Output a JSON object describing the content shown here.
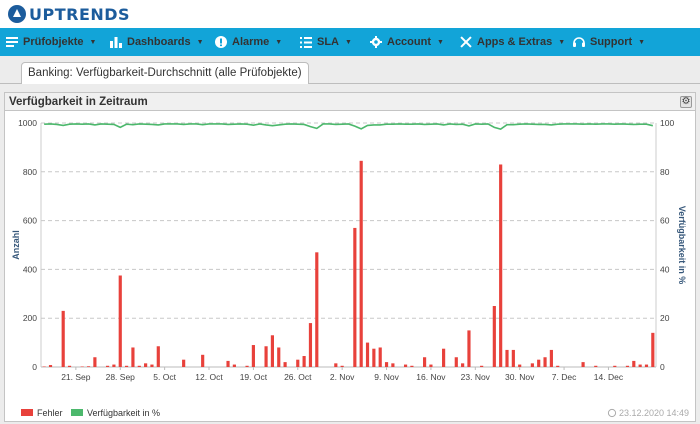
{
  "brand": {
    "name": "UPTRENDS"
  },
  "nav": [
    {
      "label": "Prüfobjekte",
      "icon": "list-icon"
    },
    {
      "label": "Dashboards",
      "icon": "bar-chart-icon"
    },
    {
      "label": "Alarme",
      "icon": "alert-icon"
    },
    {
      "label": "SLA",
      "icon": "checklist-icon"
    },
    {
      "label": "Account",
      "icon": "gear-icon"
    },
    {
      "label": "Apps & Extras",
      "icon": "tools-icon"
    },
    {
      "label": "Support",
      "icon": "headset-icon"
    }
  ],
  "tab": {
    "label": "Banking: Verfügbarkeit-Durchschnitt (alle Prüfobjekte)"
  },
  "panel": {
    "title": "Verfügbarkeit in Zeitraum",
    "timestamp": "23.12.2020 14:49"
  },
  "colors": {
    "bars": "#e8413b",
    "line": "#4cb86c",
    "nav": "#12a4d8"
  },
  "chart_data": {
    "type": "bar",
    "ylabel": "Anzahl",
    "y2label": "Verfügbarkeit in %",
    "ylim": [
      0,
      1000
    ],
    "y2lim": [
      0,
      100
    ],
    "yticks": [
      0,
      200,
      400,
      600,
      800,
      1000
    ],
    "y2ticks": [
      0,
      20,
      40,
      60,
      80,
      100
    ],
    "x_start": "2020-09-16",
    "xticks": [
      "21. Sep",
      "28. Sep",
      "5. Oct",
      "12. Oct",
      "19. Oct",
      "26. Oct",
      "2. Nov",
      "9. Nov",
      "16. Nov",
      "23. Nov",
      "30. Nov",
      "7. Dec",
      "14. Dec"
    ],
    "grid": true,
    "legend_position": "bottom-left",
    "series": [
      {
        "name": "Fehler",
        "kind": "bar",
        "values": [
          2,
          8,
          0,
          230,
          5,
          0,
          2,
          3,
          40,
          0,
          5,
          10,
          375,
          5,
          80,
          5,
          15,
          10,
          85,
          0,
          0,
          0,
          30,
          0,
          0,
          50,
          0,
          0,
          0,
          25,
          10,
          0,
          5,
          90,
          0,
          85,
          130,
          80,
          20,
          0,
          30,
          45,
          180,
          470,
          0,
          0,
          15,
          5,
          0,
          570,
          845,
          100,
          75,
          80,
          20,
          15,
          0,
          10,
          5,
          0,
          40,
          10,
          0,
          75,
          0,
          40,
          15,
          150,
          0,
          5,
          0,
          250,
          830,
          70,
          70,
          10,
          0,
          15,
          30,
          40,
          70,
          5,
          0,
          0,
          0,
          20,
          0,
          5,
          0,
          0,
          5,
          0,
          5,
          25,
          10,
          10,
          140
        ]
      },
      {
        "name": "Verfügbarkeit in %",
        "kind": "line",
        "values": [
          99.5,
          99.6,
          99.4,
          99.0,
          99.5,
          99.6,
          99.5,
          99.6,
          99.2,
          99.6,
          99.5,
          99.4,
          98.2,
          99.5,
          99.3,
          99.6,
          99.5,
          99.4,
          99.2,
          99.6,
          99.6,
          99.6,
          99.4,
          99.6,
          99.6,
          99.3,
          99.6,
          99.6,
          99.6,
          99.4,
          99.5,
          99.6,
          99.5,
          99.1,
          99.6,
          99.2,
          98.9,
          99.2,
          99.5,
          99.6,
          99.5,
          99.4,
          98.5,
          97.8,
          99.6,
          99.6,
          99.4,
          99.5,
          99.6,
          98.7,
          97.6,
          99.0,
          99.2,
          99.2,
          99.5,
          99.5,
          99.6,
          99.5,
          99.5,
          99.6,
          99.4,
          99.5,
          99.6,
          99.2,
          99.6,
          99.4,
          99.5,
          98.8,
          99.6,
          99.5,
          99.6,
          98.2,
          97.5,
          99.3,
          99.3,
          99.5,
          99.6,
          99.5,
          99.4,
          99.4,
          99.2,
          99.5,
          99.6,
          99.6,
          99.6,
          99.5,
          99.6,
          99.5,
          99.6,
          99.6,
          99.5,
          99.6,
          99.5,
          99.4,
          99.5,
          99.5,
          98.9
        ]
      }
    ]
  }
}
